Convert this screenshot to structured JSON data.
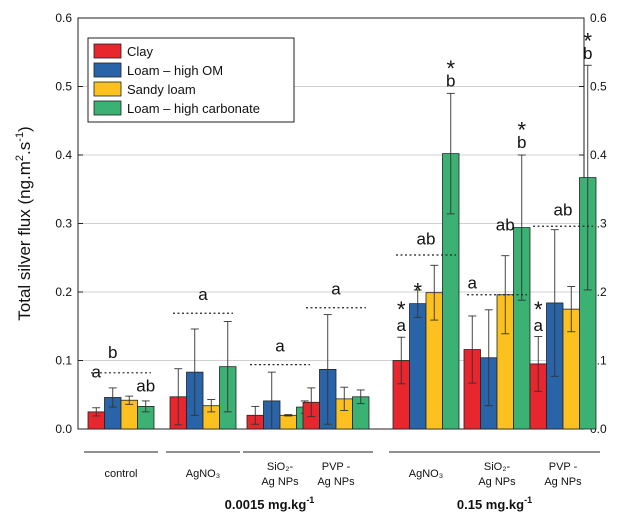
{
  "chart_data": {
    "type": "bar",
    "ylabel_main": "Total silver flux (ng.m",
    "ylabel_sup1": "2",
    "ylabel_mid": ".s",
    "ylabel_sup2": "-1",
    "ylabel_end": ")",
    "ylim": [
      0,
      0.6
    ],
    "yticks": [
      "0.0",
      "0.1",
      "0.2",
      "0.3",
      "0.4",
      "0.5",
      "0.6"
    ],
    "grid": true,
    "legend_position": "top-left",
    "colors": [
      "#e8262d",
      "#2a64a8",
      "#fcc11f",
      "#3bb273"
    ],
    "series": [
      {
        "name": "Clay"
      },
      {
        "name": "Loam – high OM"
      },
      {
        "name": "Sandy loam"
      },
      {
        "name": "Loam – high carbonate"
      }
    ],
    "categories": [
      {
        "lines": [
          "control"
        ],
        "values": [
          0.025,
          0.046,
          0.042,
          0.033
        ],
        "errors": [
          0.006,
          0.014,
          0.006,
          0.008
        ]
      },
      {
        "lines": [
          "AgNO₃"
        ],
        "values": [
          0.047,
          0.083,
          0.034,
          0.091
        ],
        "errors": [
          0.041,
          0.063,
          0.009,
          0.066
        ]
      },
      {
        "lines": [
          "SiO₂-",
          "Ag NPs"
        ],
        "values": [
          0.02,
          0.041,
          0.02,
          0.032
        ],
        "errors": [
          0.013,
          0.042,
          0.001,
          0.009
        ]
      },
      {
        "lines": [
          "PVP -",
          "Ag NPs"
        ],
        "values": [
          0.039,
          0.087,
          0.044,
          0.047
        ],
        "errors": [
          0.021,
          0.08,
          0.017,
          0.01
        ]
      },
      {
        "lines": [
          "AgNO₃"
        ],
        "values": [
          0.1,
          0.183,
          0.199,
          0.402
        ],
        "errors": [
          0.034,
          0.02,
          0.04,
          0.088
        ]
      },
      {
        "lines": [
          "SiO₂-",
          "Ag NPs"
        ],
        "values": [
          0.116,
          0.104,
          0.196,
          0.294
        ],
        "errors": [
          0.049,
          0.07,
          0.057,
          0.106
        ]
      },
      {
        "lines": [
          "PVP -",
          "Ag NPs"
        ],
        "values": [
          0.095,
          0.184,
          0.175,
          0.367
        ],
        "errors": [
          0.04,
          0.107,
          0.033,
          0.164
        ]
      }
    ],
    "groups": [
      {
        "label": "0.0015 mg.kg",
        "sup": "-1",
        "categories": [
          1,
          2,
          3
        ]
      },
      {
        "label": "0.15 mg.kg",
        "sup": "-1",
        "categories": [
          4,
          5,
          6
        ]
      }
    ],
    "annotations": [
      {
        "text": "a",
        "cat": 0,
        "bar": 0,
        "y": 0.075
      },
      {
        "text": "b",
        "cat": 0,
        "bar": 1,
        "y": 0.104
      },
      {
        "text": "ab",
        "cat": 0,
        "bar": 3,
        "y": 0.055
      },
      {
        "text": "a",
        "cat": 1,
        "bar": 1.5,
        "y": 0.188
      },
      {
        "text": "a",
        "cat": 2,
        "bar": 1.5,
        "y": 0.113
      },
      {
        "text": "a",
        "cat": 3,
        "bar": 1.5,
        "y": 0.196
      },
      {
        "text": "a",
        "cat": 4,
        "bar": 0,
        "y": 0.143
      },
      {
        "text": "ab",
        "cat": 4,
        "bar": 1.5,
        "y": 0.269
      },
      {
        "text": "b",
        "cat": 4,
        "bar": 3,
        "y": 0.5
      },
      {
        "text": "a",
        "cat": 5,
        "bar": 0,
        "y": 0.205
      },
      {
        "text": "ab",
        "cat": 5,
        "bar": 2,
        "y": 0.29
      },
      {
        "text": "b",
        "cat": 5,
        "bar": 3,
        "y": 0.41
      },
      {
        "text": "a",
        "cat": 6,
        "bar": 0,
        "y": 0.143
      },
      {
        "text": "ab",
        "cat": 6,
        "bar": 1.5,
        "y": 0.312
      },
      {
        "text": "b",
        "cat": 6,
        "bar": 3,
        "y": 0.54
      }
    ],
    "stars": [
      {
        "cat": 4,
        "bar": 0,
        "y": 0.178
      },
      {
        "cat": 4,
        "bar": 1,
        "y": 0.205
      },
      {
        "cat": 4,
        "bar": 3,
        "y": 0.53
      },
      {
        "cat": 5,
        "bar": 3,
        "y": 0.44
      },
      {
        "cat": 6,
        "bar": 0,
        "y": 0.178
      },
      {
        "cat": 6,
        "bar": 3,
        "y": 0.57
      }
    ],
    "dotted_lines": [
      {
        "cat": 0,
        "y": 0.082
      },
      {
        "cat": 1,
        "y": 0.169
      },
      {
        "cat": 2,
        "y": 0.094
      },
      {
        "cat": 3,
        "y": 0.177
      },
      {
        "cat": 4,
        "y": 0.254
      },
      {
        "cat": 5,
        "y": 0.196
      },
      {
        "cat": 6,
        "y": 0.296
      }
    ]
  }
}
